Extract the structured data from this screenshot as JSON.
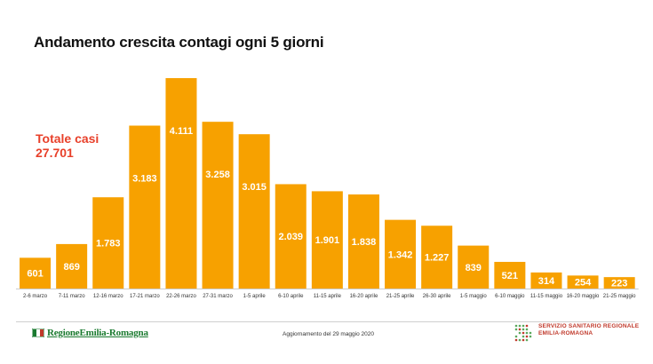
{
  "title": "Andamento crescita contagi ogni 5 giorni",
  "total": {
    "label": "Totale casi",
    "value": "27.701"
  },
  "footer": {
    "left_logo": "RegioneEmilia-Romagna",
    "update": "Aggiornamento del 29 maggio 2020",
    "right_logo_line1": "SERVIZIO SANITARIO REGIONALE",
    "right_logo_line2": "EMILIA-ROMAGNA"
  },
  "colors": {
    "bar": "#f7a100",
    "total": "#e8402a",
    "logo_green": "#1a7a2f",
    "logo_red": "#c0392b"
  },
  "chart_data": {
    "type": "bar",
    "title": "Andamento crescita contagi ogni 5 giorni",
    "categories": [
      "2-6 marzo",
      "7-11 marzo",
      "12-16 marzo",
      "17-21 marzo",
      "22-26 marzo",
      "27-31 marzo",
      "1-5 aprile",
      "6-10 aprile",
      "11-15 aprile",
      "16-20 aprile",
      "21-25 aprile",
      "26-30 aprile",
      "1-5 maggio",
      "6-10 maggio",
      "11-15 maggio",
      "16-20 maggio",
      "21-25 maggio"
    ],
    "values": [
      601,
      869,
      1783,
      3183,
      4111,
      3258,
      3015,
      2039,
      1901,
      1838,
      1342,
      1227,
      839,
      521,
      314,
      254,
      223
    ],
    "value_labels": [
      "601",
      "869",
      "1.783",
      "3.183",
      "4.111",
      "3.258",
      "3.015",
      "2.039",
      "1.901",
      "1.838",
      "1.342",
      "1.227",
      "839",
      "521",
      "314",
      "254",
      "223"
    ],
    "ylim": [
      0,
      4111
    ],
    "grid": false,
    "legend": "none"
  }
}
